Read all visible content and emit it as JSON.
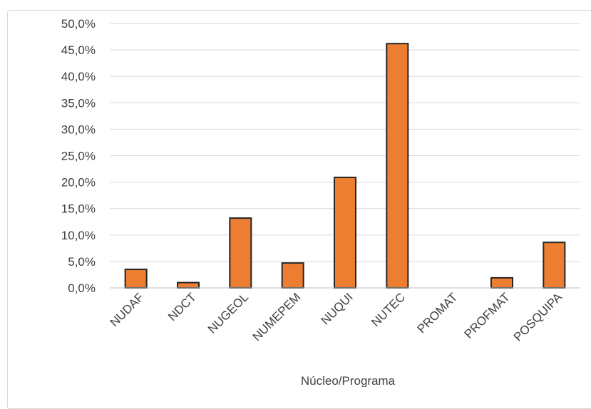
{
  "chart_data": {
    "type": "bar",
    "title": "",
    "xlabel": "Núcleo/Programa",
    "ylabel": "",
    "ylim": [
      0,
      50
    ],
    "yticks": [
      0,
      5,
      10,
      15,
      20,
      25,
      30,
      35,
      40,
      45,
      50
    ],
    "ytick_labels": [
      "0,0%",
      "5,0%",
      "10,0%",
      "15,0%",
      "20,0%",
      "25,0%",
      "30,0%",
      "35,0%",
      "40,0%",
      "45,0%",
      "50,0%"
    ],
    "categories": [
      "NUDAF",
      "NDCT",
      "NUGEOL",
      "NUMEPEM",
      "NUQUI",
      "NUTEC",
      "PROMAT",
      "PROFMAT",
      "POSQUIPA"
    ],
    "values": [
      3.5,
      1.0,
      13.2,
      4.7,
      20.9,
      46.2,
      0.0,
      1.9,
      8.6
    ],
    "bar_color": "#ED7D31",
    "bar_edge_color": "#262626",
    "grid": true
  }
}
